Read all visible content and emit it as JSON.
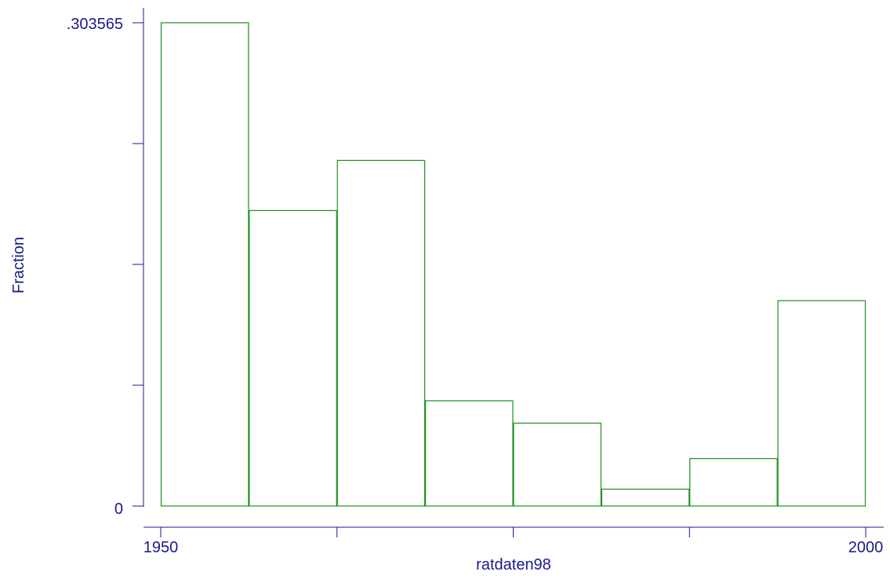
{
  "chart_data": {
    "type": "bar",
    "variant": "histogram",
    "xlabel": "ratdaten98",
    "ylabel": "Fraction",
    "x_tick_labels": [
      "1950",
      "2000"
    ],
    "y_tick_labels": [
      ".303565",
      "0"
    ],
    "xlim": [
      1950,
      2000
    ],
    "ylim": [
      0,
      0.303565
    ],
    "bin_edges": [
      1950,
      1956.25,
      1962.5,
      1968.75,
      1975,
      1981.25,
      1987.5,
      1993.75,
      2000
    ],
    "values": [
      0.303565,
      0.1856,
      0.2171,
      0.0661,
      0.0521,
      0.0106,
      0.0298,
      0.129
    ],
    "colors": {
      "bars": "#1f8f1f",
      "axes": "#1a1a8c"
    }
  }
}
